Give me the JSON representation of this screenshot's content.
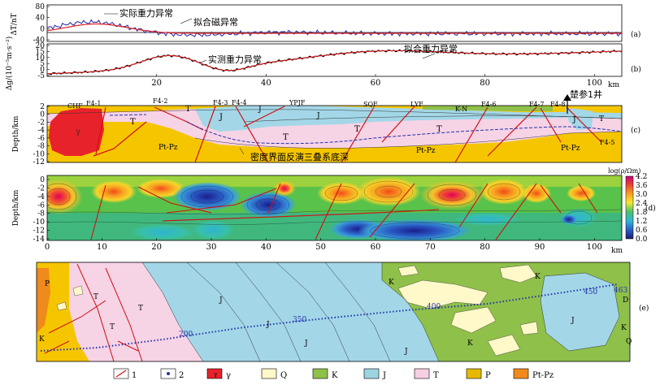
{
  "panel_a": {
    "letter": "(a)",
    "ylabel": "ΔT/nT",
    "yticks": [
      "80",
      "40",
      "0",
      "-40"
    ],
    "yvals": [
      80,
      40,
      0,
      -40
    ],
    "label_observed": "实际重力异常",
    "label_fitted": "拟合磁异常",
    "colors": {
      "observed": "#3333aa",
      "fitted": "#dd2222"
    }
  },
  "panel_b": {
    "letter": "(b)",
    "ylabel": "Δg/(10⁻⁵m·s⁻²)",
    "yticks": [
      "20",
      "15",
      "10",
      "5",
      "0",
      "-5"
    ],
    "yvals": [
      20,
      15,
      10,
      5,
      0,
      -5
    ],
    "xticks": [
      "20",
      "40",
      "60",
      "80",
      "100"
    ],
    "xunit": "km",
    "label_observed": "实测重力异常",
    "label_fitted": "拟合重力异常"
  },
  "panel_c": {
    "letter": "(c)",
    "ylabel": "Depth/km",
    "yticks": [
      "2",
      "0",
      "-2",
      "-4",
      "-6",
      "-8",
      "-10",
      "-12"
    ],
    "yvals": [
      2,
      0,
      -2,
      -4,
      -6,
      -8,
      -10,
      -12
    ],
    "well": "楚参1井",
    "interface_note": "密度界面反演三叠系底深",
    "faults": [
      "CHF",
      "F4-1",
      "F4-2",
      "F4-3",
      "F4-4",
      "YPJF",
      "SQF",
      "LYF",
      "K-N",
      "F4-6",
      "F4-7",
      "F4-8",
      "F4-5"
    ],
    "units": {
      "gamma": "γ",
      "T": "T",
      "J": "J",
      "ptpz": "Pt-Pz"
    }
  },
  "panel_d": {
    "letter": "(d)",
    "ylabel": "Depth/km",
    "yticks": [
      "0",
      "-2",
      "-4",
      "-6",
      "-8",
      "-10",
      "-12",
      "-14"
    ],
    "yvals": [
      0,
      -2,
      -4,
      -6,
      -8,
      -10,
      -12,
      -14
    ],
    "xticks": [
      "0",
      "10",
      "20",
      "30",
      "40",
      "50",
      "60",
      "70",
      "80",
      "90",
      "100"
    ],
    "xunit": "km",
    "colorbar_title": "log(ρ/Ωm)",
    "colorbar_ticks": [
      "4.2",
      "3.6",
      "3.0",
      "2.4",
      "1.8",
      "1.2",
      "0.6",
      "0.0"
    ],
    "colorbar_vals": [
      4.2,
      3.6,
      3.0,
      2.4,
      1.8,
      1.2,
      0.6,
      0.0
    ]
  },
  "panel_e": {
    "letter": "(e)",
    "stations": [
      "200",
      "350",
      "400",
      "450",
      "463"
    ],
    "map_labels": [
      "P",
      "T",
      "T",
      "T",
      "K",
      "J",
      "J",
      "J",
      "J",
      "K",
      "K",
      "K",
      "J",
      "K",
      "Q",
      "D"
    ]
  },
  "legend": [
    {
      "key": "1",
      "label": "1"
    },
    {
      "key": "2",
      "label": "2"
    },
    {
      "key": "gamma",
      "label": "γ",
      "color": "#e8222a"
    },
    {
      "key": "Q",
      "label": "Q",
      "color": "#fff8c8"
    },
    {
      "key": "K",
      "label": "K",
      "color": "#8fbf4a"
    },
    {
      "key": "J",
      "label": "J",
      "color": "#9ed3e0"
    },
    {
      "key": "T",
      "label": "T",
      "color": "#f6cfe2"
    },
    {
      "key": "P",
      "label": "P",
      "color": "#e6b800"
    },
    {
      "key": "PtPz",
      "label": "Pt-Pz",
      "color": "#f08a1c"
    }
  ]
}
